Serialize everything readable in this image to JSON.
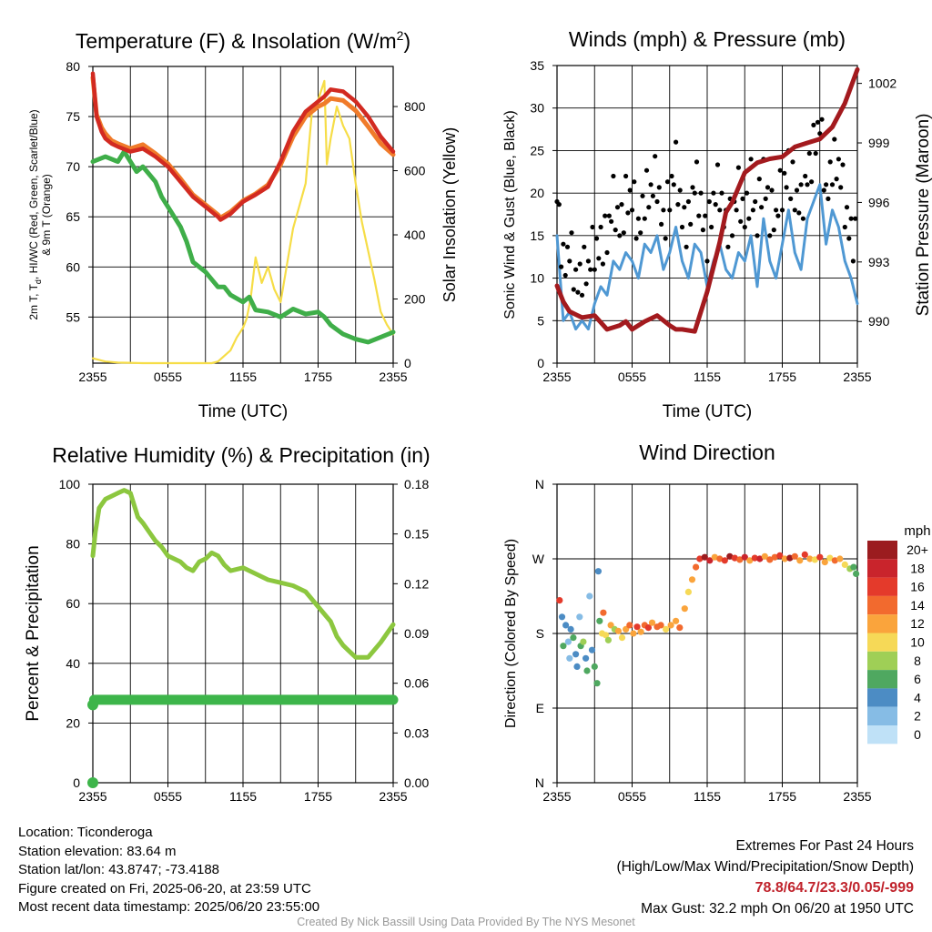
{
  "colors": {
    "maroon": "#a31a1e",
    "red": "#d22a21",
    "orange": "#f07b2a",
    "green": "#3fae49",
    "yellow": "#f6dd47",
    "blue": "#4f98d3",
    "rh_green": "#8cc73f",
    "precip_green": "#3db54a"
  },
  "chart_data": [
    {
      "id": "temperature",
      "type": "line",
      "title": "Temperature (F) & Insolation (W/m",
      "title_sup": "2",
      "title_end": ")",
      "ylabel_left_1": "2m T, T",
      "ylabel_left_sub": "d",
      "ylabel_left_2": ", HI/WC (Red, Green, Scarlet/Blue)",
      "ylabel_left_3": "& 9m T (Orange)",
      "ylabel_right": "Solar Insolation (Yellow)",
      "xlabel": "Time (UTC)",
      "xticks": [
        "2355",
        "0555",
        "1155",
        "1755",
        "2355"
      ],
      "yticks_left": [
        "80",
        "75",
        "70",
        "65",
        "60",
        "55"
      ],
      "yticks_right": [
        "800",
        "600",
        "400",
        "200",
        "0"
      ],
      "ylim_left": [
        50.4,
        80
      ],
      "ylim_right": [
        0,
        925
      ],
      "x_range_hours": [
        0,
        24
      ],
      "series": [
        {
          "role": "2m T",
          "color": "red",
          "axis": "left",
          "x": [
            0,
            0.3,
            0.7,
            1,
            1.5,
            2,
            3,
            4,
            5,
            5.5,
            6,
            7,
            8,
            9,
            10,
            10.2,
            11,
            12,
            13,
            14,
            15,
            16,
            17,
            18,
            18.5,
            19,
            20,
            20.5,
            21,
            22,
            23,
            24
          ],
          "y": [
            79.3,
            75,
            73.5,
            72.8,
            72.3,
            72,
            71.5,
            71.8,
            71,
            70.5,
            70,
            68.5,
            67,
            66,
            65,
            64.7,
            65.3,
            66.5,
            67.2,
            68,
            70.5,
            73.5,
            75.5,
            76.5,
            77,
            77.7,
            77.5,
            77,
            76.5,
            75,
            73,
            71.5
          ]
        },
        {
          "role": "9m T",
          "color": "orange",
          "axis": "left",
          "x": [
            0,
            0.3,
            0.7,
            1,
            1.5,
            2,
            3,
            4,
            5,
            5.5,
            6,
            7,
            8,
            9,
            10,
            10.2,
            11,
            12,
            13,
            14,
            15,
            16,
            17,
            18,
            18.5,
            19,
            20,
            20.5,
            21,
            22,
            23,
            24
          ],
          "y": [
            78.9,
            75.2,
            73.9,
            73.3,
            72.6,
            72.3,
            71.8,
            72.2,
            71.3,
            70.8,
            70.3,
            68.8,
            67.2,
            66.2,
            65.2,
            64.9,
            65.5,
            66.6,
            67.3,
            68.2,
            70.2,
            73,
            75,
            76,
            76.3,
            76.8,
            76.6,
            76.1,
            75.6,
            74,
            72.3,
            71.2
          ]
        },
        {
          "role": "Dewpoint",
          "color": "green",
          "axis": "left",
          "x": [
            0,
            1,
            2,
            2.5,
            3,
            3.5,
            4,
            5,
            5.5,
            6,
            7,
            7.5,
            8,
            9,
            10,
            10.5,
            11,
            12,
            12.5,
            13,
            14,
            15,
            16,
            17,
            18,
            18.5,
            19,
            20,
            21,
            22,
            23,
            24
          ],
          "y": [
            70.5,
            71,
            70.5,
            71.5,
            70.5,
            69.5,
            70,
            68.5,
            67,
            66,
            64,
            62.5,
            60.5,
            59.5,
            58,
            58,
            57.2,
            56.5,
            57,
            55.7,
            55.5,
            55,
            55.8,
            55.3,
            55.5,
            55,
            54.2,
            53.3,
            52.8,
            52.5,
            53,
            53.5
          ]
        },
        {
          "role": "Solar",
          "color": "yellow",
          "axis": "right",
          "x": [
            0,
            1,
            2,
            4,
            6,
            8,
            9,
            9.5,
            10,
            11,
            11.5,
            12,
            12.3,
            12.6,
            13,
            13.5,
            14,
            14.5,
            15,
            16,
            17,
            17.5,
            18,
            18.5,
            18.7,
            19,
            19.5,
            20,
            20.5,
            21,
            21.5,
            22,
            22.5,
            23,
            23.5,
            24
          ],
          "y": [
            15,
            5,
            2,
            0,
            0,
            0,
            0,
            0,
            5,
            40,
            80,
            110,
            140,
            200,
            330,
            250,
            300,
            230,
            190,
            420,
            560,
            780,
            820,
            880,
            620,
            700,
            800,
            740,
            700,
            560,
            440,
            350,
            260,
            160,
            120,
            90
          ]
        }
      ]
    },
    {
      "id": "wind",
      "type": "line",
      "title": "Winds (mph) & Pressure (mb)",
      "ylabel_left": "Sonic Wind & Gust (Blue, Black)",
      "ylabel_right": "Station Pressure (Maroon)",
      "xlabel": "Time (UTC)",
      "xticks": [
        "2355",
        "0555",
        "1155",
        "1755",
        "2355"
      ],
      "yticks_left": [
        "35",
        "30",
        "25",
        "20",
        "15",
        "10",
        "5",
        "0"
      ],
      "yticks_right": [
        "1002",
        "999",
        "996",
        "993",
        "990"
      ],
      "ylim_left": [
        0,
        35
      ],
      "ylim_right": [
        987.9,
        1002.9
      ],
      "x_range_hours": [
        0,
        24
      ],
      "series": [
        {
          "role": "Wind",
          "color": "blue",
          "axis": "left",
          "x": [
            0,
            0.5,
            1,
            1.5,
            2,
            2.5,
            3,
            3.5,
            4,
            4.5,
            5,
            5.5,
            6,
            6.5,
            7,
            7.5,
            8,
            8.5,
            9,
            9.5,
            10,
            10.5,
            11,
            11.5,
            12,
            12.5,
            13,
            13.5,
            14,
            14.5,
            15,
            15.5,
            16,
            16.5,
            17,
            17.5,
            18,
            18.5,
            19,
            19.5,
            20,
            20.5,
            21,
            21.5,
            22,
            22.5,
            23,
            23.5,
            24
          ],
          "y": [
            15,
            5,
            6,
            4,
            5,
            4,
            7,
            9,
            8,
            12,
            11,
            13,
            12,
            10,
            14,
            13,
            15,
            11,
            13,
            16,
            12,
            10,
            14,
            13,
            9,
            12,
            14,
            11,
            10,
            13,
            12,
            15,
            9,
            17,
            12,
            10,
            14,
            18,
            13,
            11,
            17,
            19,
            21,
            14,
            18,
            16,
            12,
            10,
            7
          ]
        },
        {
          "role": "Pressure",
          "color": "maroon",
          "axis": "right",
          "x": [
            0,
            0.5,
            1,
            2,
            3,
            4,
            5,
            5.5,
            6,
            7,
            8,
            9,
            9.5,
            10,
            11,
            12,
            13,
            13.5,
            14,
            15,
            16,
            17,
            18,
            19,
            20,
            21,
            22,
            23,
            24
          ],
          "y": [
            991.8,
            991,
            990.5,
            990.2,
            990.3,
            989.6,
            989.8,
            990,
            989.6,
            990,
            990.3,
            989.8,
            989.6,
            989.6,
            989.5,
            991.5,
            994,
            995.5,
            996,
            997.5,
            998,
            998.2,
            998.3,
            998.8,
            999,
            999.2,
            999.8,
            1001,
            1002.7
          ]
        }
      ]
    },
    {
      "id": "humidity",
      "type": "line",
      "title": "Relative Humidity (%) & Precipitation (in)",
      "ylabel_left": "Percent & Precipitation",
      "xticks": [
        "2355",
        "0555",
        "1155",
        "1755",
        "2355"
      ],
      "yticks_left": [
        "100",
        "80",
        "60",
        "40",
        "20",
        "0"
      ],
      "yticks_right": [
        "0.18",
        "0.15",
        "0.12",
        "0.09",
        "0.06",
        "0.03",
        "0.00"
      ],
      "ylim_left": [
        0,
        100
      ],
      "ylim_right": [
        0,
        0.18
      ],
      "x_range_hours": [
        0,
        24
      ],
      "series": [
        {
          "role": "RH",
          "color": "rh_green",
          "axis": "left",
          "x": [
            0,
            0.2,
            0.5,
            1,
            1.5,
            2,
            2.5,
            3,
            3.3,
            3.6,
            4,
            4.5,
            5,
            5.5,
            6,
            7,
            7.5,
            8,
            8.5,
            9,
            9.5,
            10,
            10.5,
            11,
            12,
            13,
            14,
            15,
            16,
            17,
            18,
            19,
            19.5,
            20,
            20.5,
            21,
            22,
            23,
            24
          ],
          "y": [
            76,
            84,
            92,
            95,
            96,
            97,
            98,
            97,
            93,
            89,
            87,
            84,
            81,
            79,
            76,
            74,
            72,
            71,
            74,
            75,
            77,
            76,
            73,
            71,
            72,
            70,
            68,
            67,
            66,
            64,
            59,
            54,
            49,
            46,
            44,
            42,
            42,
            47,
            53
          ]
        },
        {
          "role": "Precip",
          "color": "precip_green",
          "axis": "right",
          "x": [
            0,
            0.1,
            24
          ],
          "y": [
            0,
            0.05,
            0.05
          ]
        }
      ]
    },
    {
      "id": "direction",
      "type": "scatter",
      "title": "Wind Direction",
      "ylabel_left": "Direction (Colored By Speed)",
      "xticks": [
        "2355",
        "0555",
        "1155",
        "1755",
        "2355"
      ],
      "yticks_left": [
        "N",
        "W",
        "S",
        "E",
        "N"
      ],
      "ylim": [
        0,
        360
      ],
      "x_range_hours": [
        0,
        24
      ],
      "legend_title": "mph",
      "legend_labels": [
        "20+",
        "18",
        "16",
        "14",
        "12",
        "10",
        "8",
        "6",
        "4",
        "2",
        "0"
      ],
      "legend_colors": [
        "#9b1c1f",
        "#c9242c",
        "#e43a2b",
        "#f26a2e",
        "#faa43c",
        "#f6d957",
        "#9fcf56",
        "#4fa860",
        "#4c8cc4",
        "#86bce5",
        "#bfe1f7"
      ],
      "points": [
        [
          0.2,
          220,
          16
        ],
        [
          0.4,
          200,
          5
        ],
        [
          0.5,
          165,
          6
        ],
        [
          0.7,
          190,
          4
        ],
        [
          0.9,
          170,
          3
        ],
        [
          1.0,
          150,
          2
        ],
        [
          1.1,
          185,
          5
        ],
        [
          1.3,
          175,
          7
        ],
        [
          1.5,
          155,
          5
        ],
        [
          1.6,
          140,
          4
        ],
        [
          1.8,
          200,
          2
        ],
        [
          1.9,
          165,
          6
        ],
        [
          2.1,
          170,
          8
        ],
        [
          2.3,
          150,
          5
        ],
        [
          2.4,
          135,
          6
        ],
        [
          2.6,
          225,
          2
        ],
        [
          2.8,
          160,
          5
        ],
        [
          3.0,
          140,
          7
        ],
        [
          3.2,
          120,
          6
        ],
        [
          3.3,
          255,
          4
        ],
        [
          3.4,
          195,
          6
        ],
        [
          3.6,
          180,
          10
        ],
        [
          3.7,
          205,
          14
        ],
        [
          3.9,
          178,
          11
        ],
        [
          4.1,
          172,
          8
        ],
        [
          4.3,
          190,
          12
        ],
        [
          4.6,
          185,
          9
        ],
        [
          4.9,
          183,
          13
        ],
        [
          5.2,
          175,
          10
        ],
        [
          5.5,
          185,
          12
        ],
        [
          5.8,
          190,
          14
        ],
        [
          6.1,
          180,
          12
        ],
        [
          6.4,
          188,
          16
        ],
        [
          6.7,
          182,
          13
        ],
        [
          7.0,
          190,
          14
        ],
        [
          7.3,
          187,
          17
        ],
        [
          7.6,
          193,
          12
        ],
        [
          8.0,
          188,
          14
        ],
        [
          8.3,
          190,
          15
        ],
        [
          8.7,
          185,
          11
        ],
        [
          9.1,
          190,
          13
        ],
        [
          9.5,
          195,
          12
        ],
        [
          9.8,
          187,
          14
        ],
        [
          10.2,
          210,
          12
        ],
        [
          10.5,
          230,
          11
        ],
        [
          10.8,
          245,
          12
        ],
        [
          11.1,
          260,
          14
        ],
        [
          11.4,
          270,
          16
        ],
        [
          11.8,
          272,
          20
        ],
        [
          12.2,
          268,
          18
        ],
        [
          12.6,
          272,
          13
        ],
        [
          13.0,
          270,
          15
        ],
        [
          13.4,
          268,
          17
        ],
        [
          13.8,
          273,
          20
        ],
        [
          14.2,
          271,
          16
        ],
        [
          14.6,
          269,
          14
        ],
        [
          15.0,
          272,
          18
        ],
        [
          15.4,
          268,
          13
        ],
        [
          15.8,
          271,
          16
        ],
        [
          16.2,
          270,
          19
        ],
        [
          16.6,
          273,
          12
        ],
        [
          17.0,
          269,
          15
        ],
        [
          17.4,
          272,
          14
        ],
        [
          17.8,
          274,
          17
        ],
        [
          18.2,
          270,
          13
        ],
        [
          18.6,
          271,
          20
        ],
        [
          19.0,
          273,
          15
        ],
        [
          19.4,
          268,
          12
        ],
        [
          19.8,
          275,
          16
        ],
        [
          20.2,
          270,
          13
        ],
        [
          20.6,
          269,
          10
        ],
        [
          21.0,
          272,
          17
        ],
        [
          21.4,
          266,
          13
        ],
        [
          21.8,
          271,
          11
        ],
        [
          22.2,
          268,
          15
        ],
        [
          22.6,
          270,
          12
        ],
        [
          23.0,
          263,
          10
        ],
        [
          23.4,
          258,
          8
        ],
        [
          23.7,
          260,
          7
        ],
        [
          23.9,
          252,
          6
        ]
      ]
    }
  ],
  "info": {
    "location": "Location: Ticonderoga",
    "elevation": "Station elevation: 83.64 m",
    "latlon": "Station lat/lon: 43.8747; -73.4188",
    "created": "Figure created on Fri, 2025-06-20, at 23:59 UTC",
    "recent": "Most recent data timestamp: 2025/06/20 23:55:00",
    "extremes_title": "Extremes For Past 24 Hours",
    "extremes_legend": "(High/Low/Max Wind/Precipitation/Snow Depth)",
    "extremes_values": "78.8/64.7/23.3/0.05/-999",
    "max_gust": "Max Gust: 32.2 mph On 06/20 at 1950 UTC",
    "credit": "Created By Nick Bassill Using Data Provided By The NYS Mesonet"
  }
}
